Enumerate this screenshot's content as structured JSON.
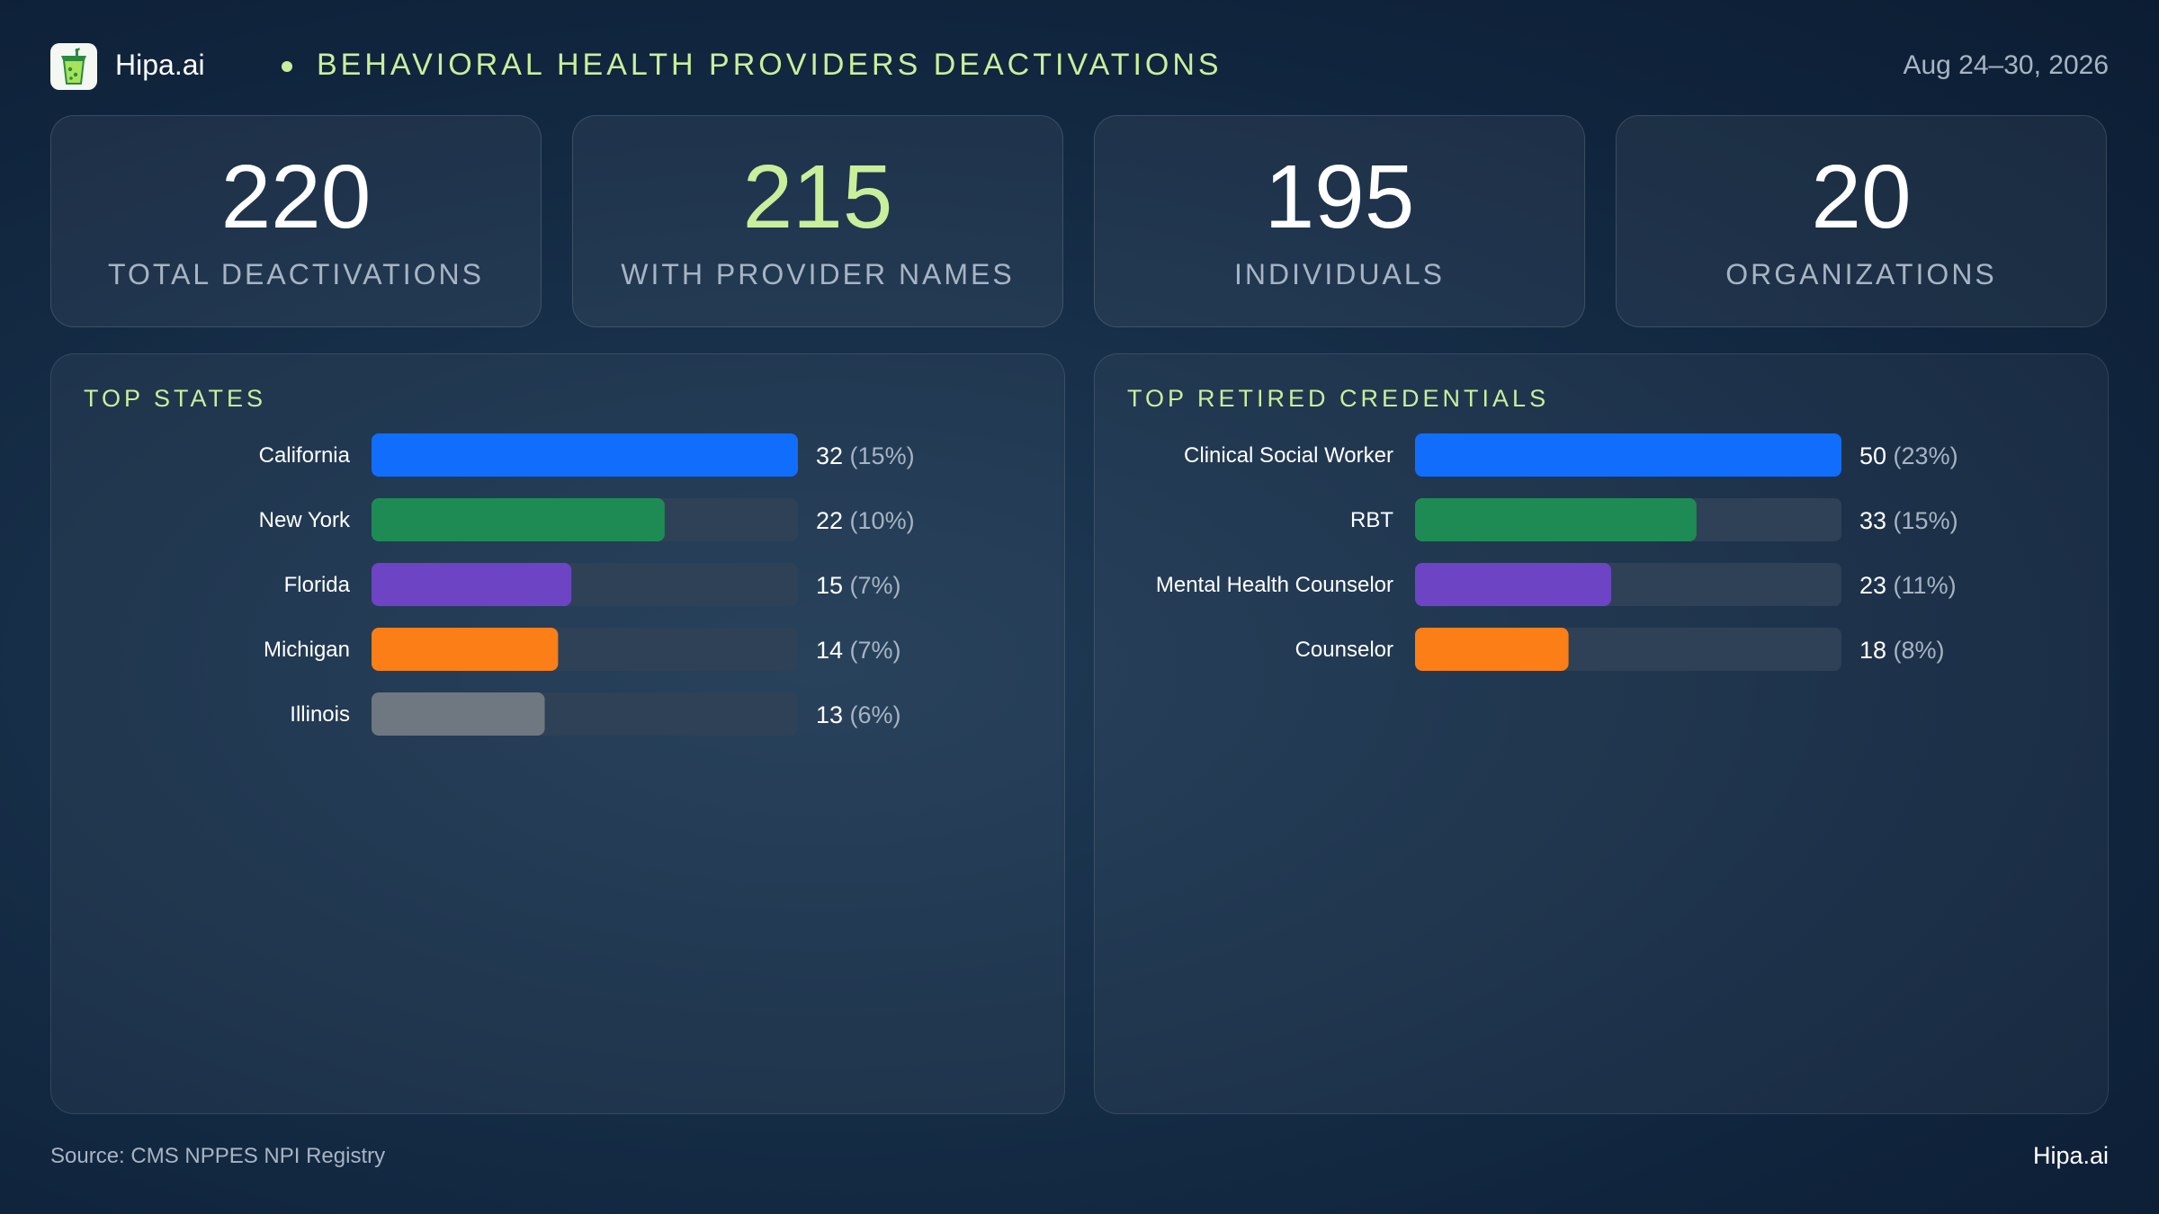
{
  "header": {
    "brand": "Hipa.ai",
    "title": "BEHAVIORAL HEALTH PROVIDERS DEACTIVATIONS",
    "date_range": "Aug 24–30, 2026",
    "logo_icon": "drink-cup-icon"
  },
  "kpis": [
    {
      "value": "220",
      "label": "TOTAL DEACTIVATIONS"
    },
    {
      "value": "215",
      "label": "WITH PROVIDER NAMES"
    },
    {
      "value": "195",
      "label": "INDIVIDUALS"
    },
    {
      "value": "20",
      "label": "ORGANIZATIONS"
    }
  ],
  "colors": {
    "accent": "#c9ef9c",
    "blue": "#116dfb",
    "green": "#1f8b54",
    "purple": "#6d44c3",
    "orange": "#fb7e17",
    "gray": "#6f7780",
    "track": "#2f4157"
  },
  "chart_data": [
    {
      "type": "bar",
      "orientation": "horizontal",
      "title": "TOP STATES",
      "categories": [
        "California",
        "New York",
        "Florida",
        "Michigan",
        "Illinois"
      ],
      "values": [
        32,
        22,
        15,
        14,
        13
      ],
      "percents": [
        "(15%)",
        "(10%)",
        "(7%)",
        "(7%)",
        "(6%)"
      ],
      "bar_colors": [
        "#116dfb",
        "#1f8b54",
        "#6d44c3",
        "#fb7e17",
        "#6f7780"
      ],
      "xlim": [
        0,
        32
      ]
    },
    {
      "type": "bar",
      "orientation": "horizontal",
      "title": "TOP RETIRED CREDENTIALS",
      "categories": [
        "Clinical Social Worker",
        "RBT",
        "Mental Health Counselor",
        "Counselor"
      ],
      "values": [
        50,
        33,
        23,
        18
      ],
      "percents": [
        "(23%)",
        "(15%)",
        "(11%)",
        "(8%)"
      ],
      "bar_colors": [
        "#116dfb",
        "#1f8b54",
        "#6d44c3",
        "#fb7e17"
      ],
      "xlim": [
        0,
        50
      ]
    }
  ],
  "footer": {
    "source": "Source: CMS NPPES NPI Registry",
    "brand": "Hipa.ai"
  }
}
